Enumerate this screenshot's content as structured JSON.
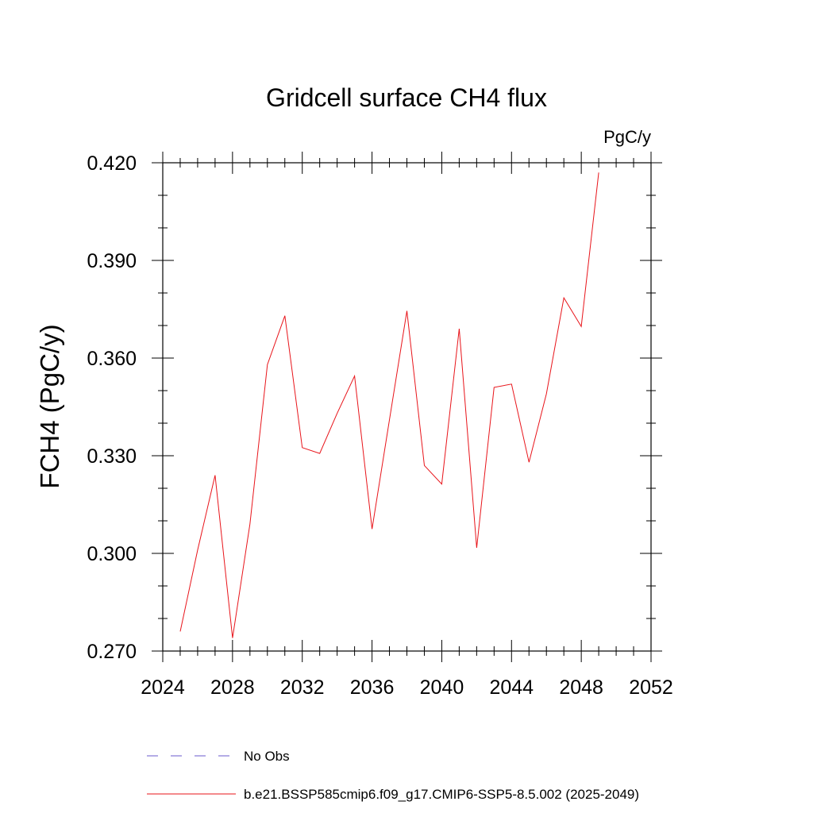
{
  "chart_data": {
    "type": "line",
    "title": "Gridcell surface CH4 flux",
    "units_label": "PgC/y",
    "ylabel": "FCH4  (PgC/y)",
    "xlabel": "",
    "xlim": [
      2024,
      2052
    ],
    "ylim": [
      0.27,
      0.42
    ],
    "x_ticks": [
      2024,
      2028,
      2032,
      2036,
      2040,
      2044,
      2048,
      2052
    ],
    "x_tick_labels": [
      "2024",
      "2028",
      "2032",
      "2036",
      "2040",
      "2044",
      "2048",
      "2052"
    ],
    "y_ticks": [
      0.27,
      0.3,
      0.33,
      0.36,
      0.39,
      0.42
    ],
    "y_tick_labels": [
      "0.270",
      "0.300",
      "0.330",
      "0.360",
      "0.390",
      "0.420"
    ],
    "grid": false,
    "legend_placement": "bottom",
    "series": [
      {
        "name": "b.e21.BSSP585cmip6.f09_g17.CMIP6-SSP5-8.5.002 (2025-2049)",
        "color": "#e8141a",
        "style": "solid",
        "x": [
          2025,
          2026,
          2027,
          2028,
          2029,
          2030,
          2031,
          2032,
          2033,
          2034,
          2035,
          2036,
          2037,
          2038,
          2039,
          2040,
          2041,
          2042,
          2043,
          2044,
          2045,
          2046,
          2047,
          2048,
          2049
        ],
        "values": [
          0.276,
          0.301,
          0.324,
          0.274,
          0.309,
          0.358,
          0.373,
          0.3325,
          0.3307,
          0.343,
          0.3545,
          0.3075,
          0.341,
          0.3745,
          0.327,
          0.3213,
          0.369,
          0.3017,
          0.351,
          0.352,
          0.328,
          0.349,
          0.3785,
          0.3697,
          0.417
        ]
      },
      {
        "name": "No Obs",
        "color": "#6a5acd",
        "style": "dashed",
        "x": [],
        "values": []
      }
    ]
  }
}
